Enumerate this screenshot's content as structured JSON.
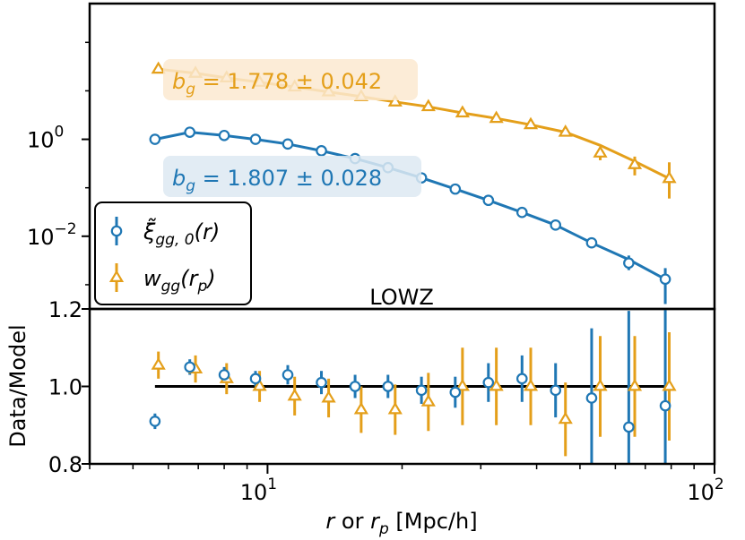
{
  "chart_data": [
    {
      "panel": "top",
      "type": "line",
      "title": "LOWZ",
      "xscale": "log",
      "yscale": "log",
      "xlim": [
        4,
        100
      ],
      "ylim_log10": [
        -3.5,
        2.8
      ],
      "yticks": [
        {
          "value": 1,
          "label": "10",
          "exp": "0"
        },
        {
          "value": 0.01,
          "label": "10",
          "exp": "−2"
        }
      ],
      "legend": {
        "position": "lower-left",
        "entries": [
          {
            "series": "xi",
            "label": "ξ̃",
            "sub": "gg, 0",
            "arg": "(r)"
          },
          {
            "series": "wgg",
            "label": "w",
            "sub": "gg",
            "arg": "(r",
            "argsub": "p",
            "argclose": ")"
          }
        ]
      },
      "series": [
        {
          "name": "wgg",
          "color": "#e49f1a",
          "marker": "triangle",
          "annotation": {
            "prefix": "b",
            "sub": "g",
            "text": " = 1.778 ± 0.042"
          },
          "x": [
            5.7,
            6.9,
            8.1,
            9.6,
            11.5,
            13.7,
            16.2,
            19.3,
            22.9,
            27.3,
            32.5,
            38.8,
            46.4,
            55.5,
            66.3,
            79.2
          ],
          "y": [
            28,
            23,
            18.5,
            15,
            12,
            9.5,
            7.6,
            5.9,
            4.7,
            3.5,
            2.7,
            2.0,
            1.4,
            0.52,
            0.3,
            0.155
          ],
          "err_lo": [
            0,
            0,
            0,
            0,
            0,
            0,
            0,
            0,
            0,
            0,
            0,
            0,
            0,
            0.15,
            0.12,
            0.095
          ],
          "err_hi": [
            0,
            0,
            0,
            0,
            0,
            0,
            0,
            0,
            0,
            0,
            0,
            0,
            0,
            0.15,
            0.14,
            0.18
          ],
          "model_x": [
            5.7,
            6.9,
            8.1,
            9.6,
            11.5,
            13.7,
            16.2,
            19.3,
            22.9,
            27.3,
            32.5,
            38.8,
            46.4,
            55.5,
            66.3,
            79.2
          ],
          "model_y": [
            28,
            23,
            18.5,
            15,
            12,
            9.5,
            7.6,
            5.9,
            4.7,
            3.5,
            2.7,
            2.0,
            1.4,
            0.75,
            0.35,
            0.155
          ]
        },
        {
          "name": "xi",
          "color": "#1f77b4",
          "marker": "circle",
          "annotation": {
            "prefix": "b",
            "sub": "g",
            "text": " = 1.807 ± 0.028"
          },
          "x": [
            5.6,
            6.7,
            8.0,
            9.4,
            11.1,
            13.2,
            15.7,
            18.6,
            22.1,
            26.3,
            31.2,
            37.1,
            44.1,
            53.1,
            64.3,
            77.6
          ],
          "y": [
            1.0,
            1.4,
            1.2,
            1.0,
            0.8,
            0.58,
            0.4,
            0.26,
            0.16,
            0.094,
            0.055,
            0.031,
            0.017,
            0.0073,
            0.0028,
            0.0013
          ],
          "err_lo": [
            0,
            0,
            0,
            0,
            0,
            0,
            0,
            0,
            0,
            0,
            0,
            0,
            0,
            0,
            0.0008,
            0.0009
          ],
          "err_hi": [
            0,
            0,
            0,
            0,
            0,
            0,
            0,
            0,
            0,
            0,
            0,
            0,
            0,
            0,
            0.0012,
            0.0009
          ],
          "model_x": [
            5.6,
            6.7,
            8.0,
            9.4,
            11.1,
            13.2,
            15.7,
            18.6,
            22.1,
            26.3,
            31.2,
            37.1,
            44.1,
            53.1,
            64.3,
            77.6
          ],
          "model_y": [
            1.0,
            1.4,
            1.2,
            1.0,
            0.8,
            0.58,
            0.4,
            0.26,
            0.16,
            0.094,
            0.055,
            0.031,
            0.017,
            0.0073,
            0.0033,
            0.0013
          ]
        }
      ]
    },
    {
      "panel": "bottom",
      "type": "scatter",
      "xscale": "log",
      "xlim": [
        4,
        100
      ],
      "ylim": [
        0.8,
        1.2
      ],
      "yticks": [
        0.8,
        1.0,
        1.2
      ],
      "ylabel": "Data/Model",
      "xlabel": {
        "pre": "r",
        "mid": " or ",
        "r2": "r",
        "sub": "p",
        "post": " [Mpc/h]"
      },
      "xticks": [
        {
          "value": 10,
          "label": "10",
          "exp": "1"
        },
        {
          "value": 100,
          "label": "10",
          "exp": "2"
        }
      ],
      "reference_line": {
        "y": 1.0,
        "x_from": 5.6,
        "x_to": 79.2
      },
      "series": [
        {
          "name": "xi",
          "color": "#1f77b4",
          "marker": "circle",
          "x": [
            5.6,
            6.7,
            8.0,
            9.4,
            11.1,
            13.2,
            15.7,
            18.6,
            22.1,
            26.3,
            31.2,
            37.1,
            44.1,
            53.1,
            64.3,
            77.6
          ],
          "y": [
            0.91,
            1.05,
            1.03,
            1.02,
            1.03,
            1.01,
            1.0,
            1.0,
            0.99,
            0.985,
            1.01,
            1.02,
            0.99,
            0.97,
            0.895,
            0.95
          ],
          "err": [
            0.02,
            0.02,
            0.02,
            0.02,
            0.025,
            0.03,
            0.03,
            0.03,
            0.035,
            0.04,
            0.05,
            0.06,
            0.07,
            0.18,
            0.3,
            0.35
          ]
        },
        {
          "name": "wgg",
          "color": "#e49f1a",
          "marker": "triangle",
          "x": [
            5.7,
            6.9,
            8.1,
            9.6,
            11.5,
            13.7,
            16.2,
            19.3,
            22.9,
            27.3,
            32.5,
            38.8,
            46.4,
            55.5,
            66.3,
            79.2
          ],
          "y": [
            1.055,
            1.045,
            1.02,
            1.0,
            0.975,
            0.97,
            0.94,
            0.94,
            0.96,
            1.0,
            1.0,
            1.0,
            0.915,
            1.0,
            1.0,
            1.0
          ],
          "err": [
            0.035,
            0.035,
            0.04,
            0.04,
            0.05,
            0.05,
            0.06,
            0.065,
            0.075,
            0.1,
            0.1,
            0.1,
            0.095,
            0.13,
            0.13,
            0.14
          ]
        }
      ]
    }
  ]
}
